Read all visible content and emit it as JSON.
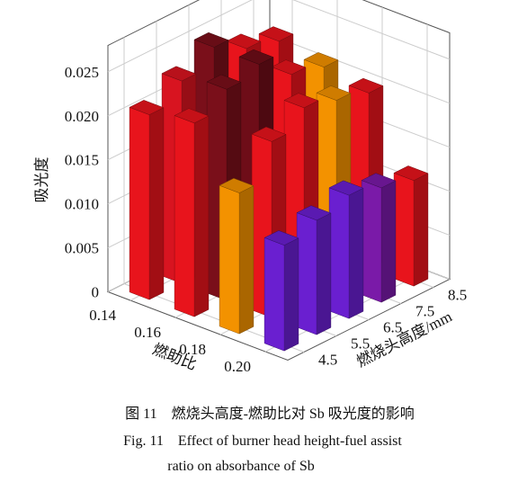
{
  "chart_data": {
    "type": "bar3d",
    "y_label": "吸光度",
    "x_label": "燃助比",
    "z_label": "燃烧头高度/mm",
    "x_categories": [
      "0.14",
      "0.16",
      "0.18",
      "0.20"
    ],
    "z_categories": [
      "4.5",
      "5.5",
      "6.5",
      "7.5",
      "8.5"
    ],
    "values": [
      [
        0.021,
        0.023,
        0.025,
        0.023,
        0.022
      ],
      [
        0.022,
        0.024,
        0.025,
        0.022,
        0.021
      ],
      [
        0.016,
        0.02,
        0.022,
        0.021,
        0.02
      ],
      [
        0.012,
        0.013,
        0.014,
        0.013,
        0.012
      ]
    ],
    "colors": [
      [
        "#e8141c",
        "#d81420",
        "#7a0f1a",
        "#e8141c",
        "#e8141c"
      ],
      [
        "#e8141c",
        "#7a0f1a",
        "#6e0d18",
        "#e8141c",
        "#f39200"
      ],
      [
        "#f39200",
        "#e8141c",
        "#e8141c",
        "#f39200",
        "#e8141c"
      ],
      [
        "#6a1fd0",
        "#6a1fd0",
        "#6a1fd0",
        "#7a1aa8",
        "#e8141c"
      ]
    ],
    "ylim": [
      0,
      0.028
    ],
    "yticks": [
      0,
      0.005,
      {
        "value": 0.01,
        "label": "0.010"
      },
      0.015,
      {
        "value": 0.02,
        "label": "0.020"
      },
      0.025
    ],
    "grid": true,
    "caption": [
      "图 11　燃烧头高度-燃助比对 Sb 吸光度的影响",
      "Fig. 11　Effect of burner head height-fuel assist",
      "ratio on absorbance of Sb"
    ]
  }
}
